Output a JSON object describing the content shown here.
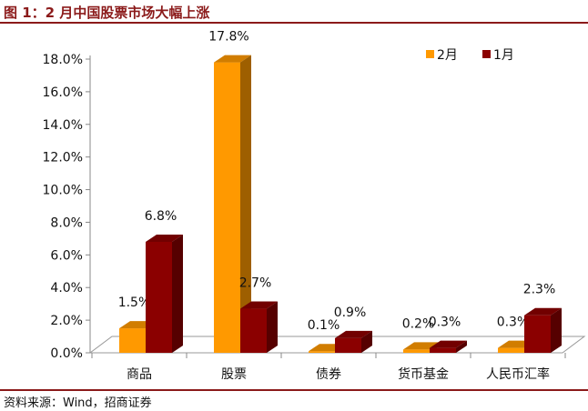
{
  "title": "图 1：2 月中国股票市场大幅上涨",
  "source": "资料来源：Wind，招商证券",
  "chart_data": {
    "type": "bar",
    "categories": [
      "商品",
      "股票",
      "债券",
      "货币基金",
      "人民币汇率"
    ],
    "series": [
      {
        "name": "2月",
        "values": [
          1.5,
          17.8,
          0.1,
          0.2,
          0.3
        ],
        "labels": [
          "1.5%",
          "17.8%",
          "0.1%",
          "0.2%",
          "0.3%"
        ],
        "color": "#FF9900"
      },
      {
        "name": "1月",
        "values": [
          6.8,
          2.7,
          0.9,
          0.3,
          2.3
        ],
        "labels": [
          "6.8%",
          "2.7%",
          "0.9%",
          "0.3%",
          "2.3%"
        ],
        "color": "#8B0000"
      }
    ],
    "yticks": [
      "0.0%",
      "2.0%",
      "4.0%",
      "6.0%",
      "8.0%",
      "10.0%",
      "12.0%",
      "14.0%",
      "16.0%",
      "18.0%"
    ],
    "ylim": [
      0,
      18
    ],
    "grid": false,
    "legend": "top-right",
    "three_d": true
  }
}
